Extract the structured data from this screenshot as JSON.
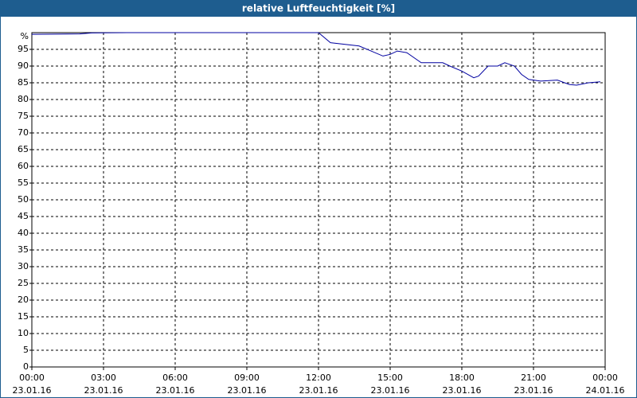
{
  "chart_data": {
    "type": "line",
    "title": "relative Luftfeuchtigkeit [%]",
    "y_unit": "%",
    "x": [
      0,
      2,
      2.5,
      4,
      8,
      12,
      12.5,
      13.7,
      14.2,
      14.7,
      15,
      15.3,
      15.7,
      16,
      16.3,
      17.2,
      17.5,
      18,
      18.5,
      18.7,
      19.1,
      19.5,
      19.8,
      20.2,
      20.5,
      20.8,
      21.3,
      22,
      22.5,
      22.8,
      23.3,
      23.8
    ],
    "series": [
      {
        "name": "relative Luftfeuchtigkeit",
        "color": "#0000a0",
        "values": [
          99.5,
          99.6,
          99.9,
          100,
          100,
          100,
          97,
          96,
          94.5,
          93,
          93.5,
          94.5,
          94,
          92.5,
          91,
          91,
          90,
          88.5,
          86.5,
          87,
          90,
          90,
          91,
          90,
          87.5,
          86,
          85.5,
          85.8,
          84.5,
          84.3,
          85,
          85.3
        ]
      }
    ],
    "xlim": [
      0,
      24
    ],
    "xticks": [
      {
        "value": 0,
        "label": "00:00"
      },
      {
        "value": 3,
        "label": "03:00"
      },
      {
        "value": 6,
        "label": "06:00"
      },
      {
        "value": 9,
        "label": "09:00"
      },
      {
        "value": 12,
        "label": "12:00"
      },
      {
        "value": 15,
        "label": "15:00"
      },
      {
        "value": 18,
        "label": "18:00"
      },
      {
        "value": 21,
        "label": "21:00"
      },
      {
        "value": 24,
        "label": "00:00"
      }
    ],
    "xtick_dates": [
      "23.01.16",
      "23.01.16",
      "23.01.16",
      "23.01.16",
      "23.01.16",
      "23.01.16",
      "23.01.16",
      "23.01.16",
      "24.01.16"
    ],
    "ylim": [
      0,
      100
    ],
    "yticks": [
      0,
      5,
      10,
      15,
      20,
      25,
      30,
      35,
      40,
      45,
      50,
      55,
      60,
      65,
      70,
      75,
      80,
      85,
      90,
      95
    ],
    "grid": true
  }
}
